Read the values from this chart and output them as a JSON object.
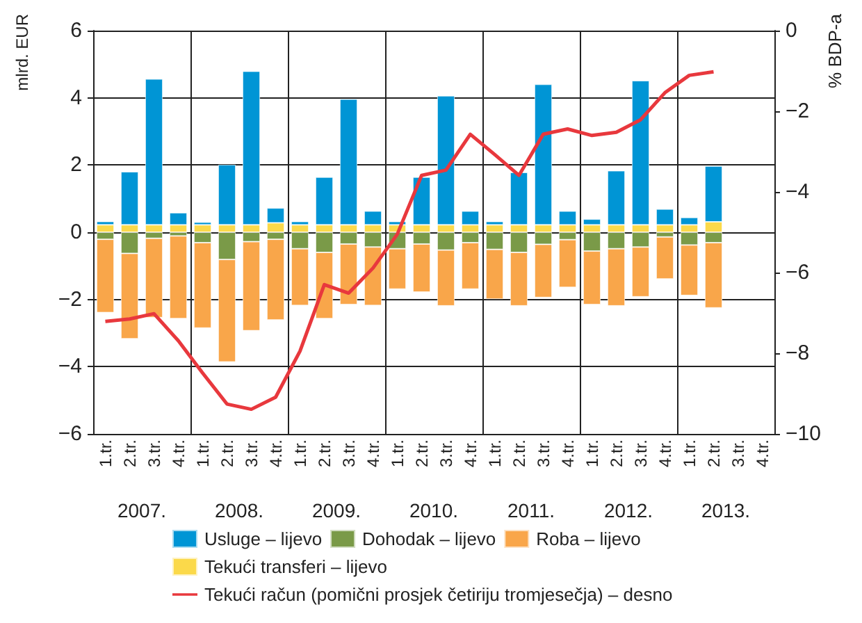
{
  "chart_data": {
    "type": "bar",
    "stacked": true,
    "ylabel": "mlrd. EUR",
    "y2label": "% BDP-a",
    "categories": [
      "1.tr.",
      "2.tr.",
      "3.tr.",
      "4.tr.",
      "1.tr.",
      "2.tr.",
      "3.tr.",
      "4.tr.",
      "1.tr.",
      "2.tr.",
      "3.tr.",
      "4.tr.",
      "1.tr.",
      "2.tr.",
      "3.tr.",
      "4.tr.",
      "1.tr.",
      "2.tr.",
      "3.tr.",
      "4.tr.",
      "1.tr.",
      "2.tr.",
      "3.tr.",
      "4.tr.",
      "1.tr.",
      "2.tr.",
      "3.tr.",
      "4.tr."
    ],
    "annotations": [
      "2007.",
      "2008.",
      "2009.",
      "2010.",
      "2011.",
      "2012.",
      "2013."
    ],
    "series": [
      {
        "name": "Tekući transferi – lijevo",
        "color": "#fbd94a",
        "values": [
          0.22,
          0.22,
          0.22,
          0.22,
          0.22,
          0.22,
          0.22,
          0.28,
          0.22,
          0.22,
          0.22,
          0.22,
          0.22,
          0.22,
          0.22,
          0.22,
          0.22,
          0.22,
          0.22,
          0.22,
          0.22,
          0.22,
          0.22,
          0.22,
          0.22,
          0.31,
          null,
          null
        ]
      },
      {
        "name": "Usluge – lijevo",
        "color": "#0095d5",
        "values": [
          0.1,
          1.58,
          4.34,
          0.36,
          0.08,
          1.79,
          4.57,
          0.44,
          0.1,
          1.42,
          3.74,
          0.41,
          0.1,
          1.42,
          3.84,
          0.41,
          0.1,
          1.56,
          4.18,
          0.41,
          0.17,
          1.61,
          4.29,
          0.47,
          0.22,
          1.66,
          null,
          null
        ]
      },
      {
        "name": "Dohodak – lijevo",
        "color": "#7a9a48",
        "values": [
          -0.21,
          -0.63,
          -0.18,
          -0.11,
          -0.31,
          -0.81,
          -0.28,
          -0.21,
          -0.49,
          -0.6,
          -0.35,
          -0.44,
          -0.49,
          -0.35,
          -0.53,
          -0.31,
          -0.51,
          -0.6,
          -0.36,
          -0.22,
          -0.56,
          -0.49,
          -0.44,
          -0.14,
          -0.38,
          -0.31,
          null,
          null
        ]
      },
      {
        "name": "Roba – lijevo",
        "color": "#f9a64a",
        "values": [
          -2.18,
          -2.54,
          -2.36,
          -2.46,
          -2.54,
          -3.05,
          -2.65,
          -2.4,
          -1.69,
          -1.97,
          -1.8,
          -1.74,
          -1.2,
          -1.43,
          -1.66,
          -1.38,
          -1.48,
          -1.59,
          -1.58,
          -1.42,
          -1.59,
          -1.7,
          -1.48,
          -1.25,
          -1.5,
          -1.94,
          null,
          null
        ]
      },
      {
        "name": "Tekući račun (pomični prosjek četiriju tromjesečja) – desno",
        "type": "line",
        "axis": "y2",
        "color": "#e8383d",
        "values": [
          -7.21,
          -7.15,
          -7.02,
          -7.69,
          -8.49,
          -9.26,
          -9.39,
          -9.09,
          -7.95,
          -6.3,
          -6.51,
          -5.89,
          -5.05,
          -3.59,
          -3.46,
          -2.57,
          -3.07,
          -3.59,
          -2.57,
          -2.44,
          -2.6,
          -2.52,
          -2.21,
          -1.54,
          -1.11,
          -1.02,
          null,
          null
        ]
      }
    ],
    "ylim": [
      -6,
      6
    ],
    "yticks": [
      -6,
      -4,
      -2,
      0,
      2,
      4,
      6
    ],
    "y2lim": [
      -10,
      0
    ],
    "y2ticks": [
      -10,
      -8,
      -6,
      -4,
      -2,
      0
    ],
    "grid": true,
    "legend": "bottom",
    "marker": "none"
  }
}
